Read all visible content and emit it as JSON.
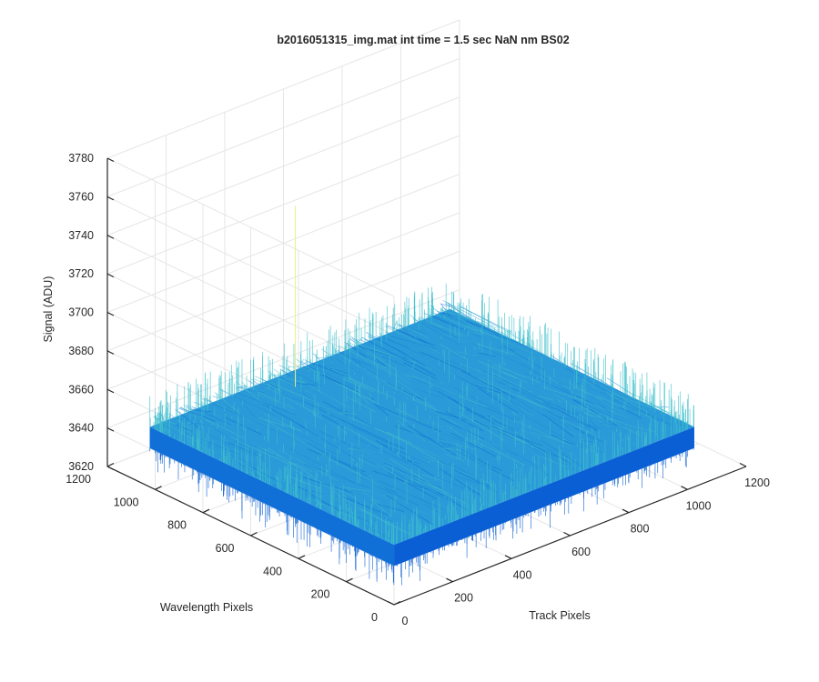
{
  "chart_data": {
    "type": "surface",
    "title": "b2016051315_img.mat int time = 1.5 sec  NaN nm BS02",
    "xlabel": "Track Pixels",
    "ylabel": "Wavelength Pixels",
    "zlabel": "Signal (ADU)",
    "xlim": [
      0,
      1200
    ],
    "ylim": [
      0,
      1200
    ],
    "zlim": [
      3620,
      3780
    ],
    "xticks": [
      "0",
      "200",
      "400",
      "600",
      "800",
      "1000",
      "1200"
    ],
    "yticks": [
      "0",
      "200",
      "400",
      "600",
      "800",
      "1000",
      "1200"
    ],
    "zticks": [
      "3620",
      "3640",
      "3660",
      "3680",
      "3700",
      "3720",
      "3740",
      "3760",
      "3780"
    ],
    "data_extent": {
      "x": [
        1,
        1024
      ],
      "y": [
        1,
        1024
      ]
    },
    "signal": {
      "baseline_top": 3651,
      "baseline_bottom": 3640,
      "noise_high": 3668,
      "noise_low": 3625,
      "spike_max": 3745
    },
    "grid": true,
    "colors": {
      "surface_low": "#0a5fd4",
      "surface_mid": "#2a9ad8",
      "surface_high": "#3fc0cc",
      "spike": "#e8f08a"
    }
  }
}
